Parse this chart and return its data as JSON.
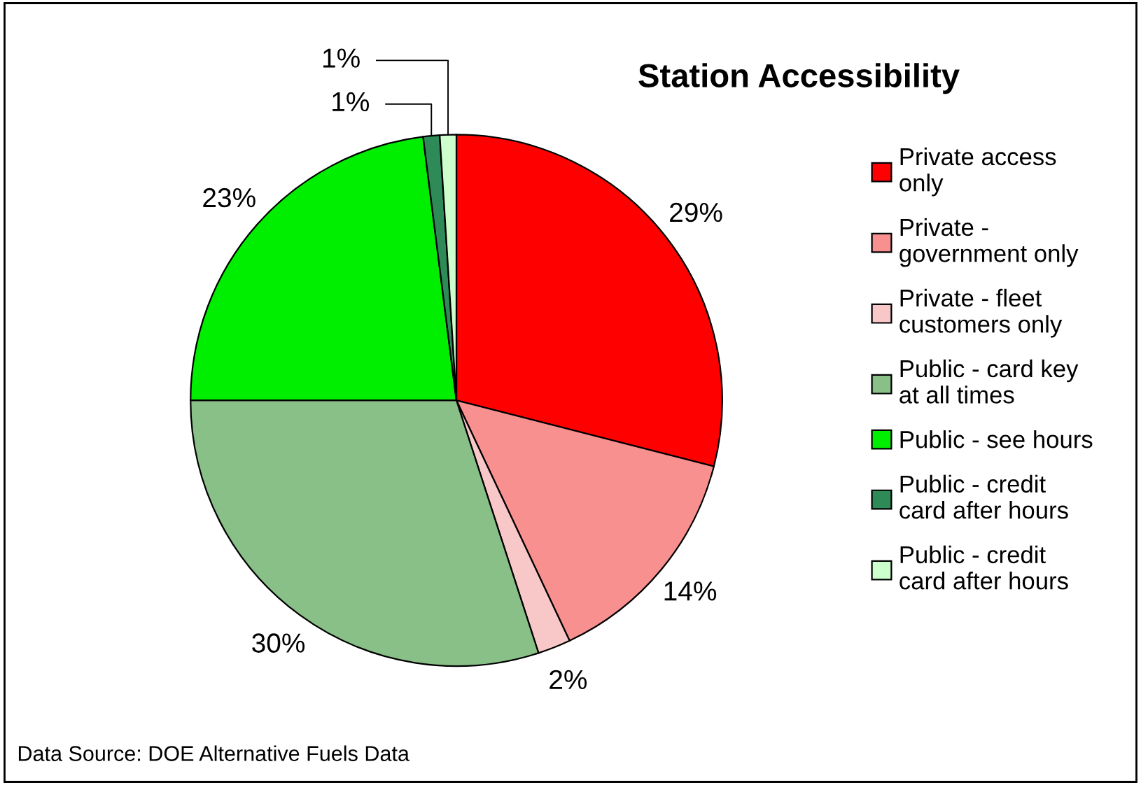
{
  "chart_data": {
    "type": "pie",
    "title": "Station Accessibility",
    "categories": [
      "Private access\nonly",
      "Private -\ngovernment only",
      "Private - fleet\ncustomers only",
      "Public - card key\nat all times",
      "Public - see hours",
      "Public - credit\ncard after hours",
      "Public - credit\ncard after hours"
    ],
    "values": [
      29,
      14,
      2,
      30,
      23,
      1,
      1
    ],
    "value_labels": [
      "29%",
      "14%",
      "2%",
      "30%",
      "23%",
      "1%",
      "1%"
    ],
    "colors": [
      "#ff0000",
      "#f89090",
      "#f8c8c8",
      "#88c088",
      "#00ee00",
      "#2e8b57",
      "#ccffcc"
    ],
    "legend": "right",
    "annotations": [
      "Data Source: DOE Alternative Fuels Data"
    ]
  }
}
